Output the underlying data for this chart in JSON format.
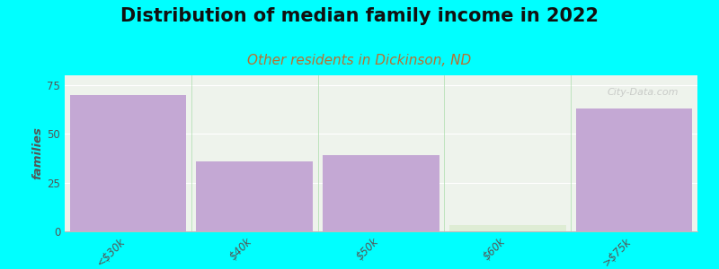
{
  "title": "Distribution of median family income in 2022",
  "subtitle": "Other residents in Dickinson, ND",
  "categories": [
    "<$30k",
    "$40k",
    "$50k",
    "$60k",
    ">$75k"
  ],
  "values": [
    70,
    36,
    39,
    3,
    63
  ],
  "bar_color": "#c4a8d4",
  "highlight_color": "#deecd4",
  "highlight_index": 3,
  "background_color": "#00ffff",
  "plot_bg_color": "#eef3ec",
  "ylabel": "families",
  "ylim": [
    0,
    80
  ],
  "yticks": [
    0,
    25,
    50,
    75
  ],
  "title_fontsize": 15,
  "subtitle_fontsize": 11,
  "subtitle_color": "#b87030",
  "watermark": "City-Data.com"
}
